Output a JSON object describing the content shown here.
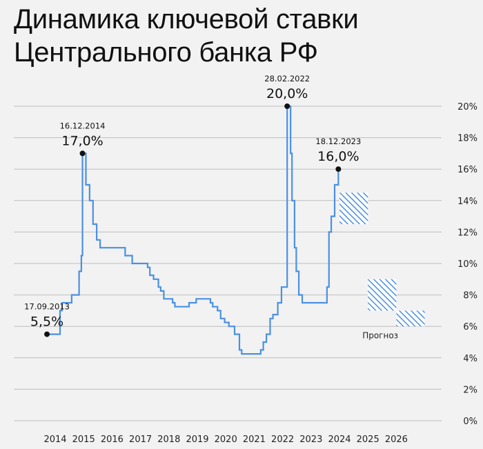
{
  "chart_data": {
    "type": "line",
    "title_lines": [
      "Динамика ключевой ставки",
      "Центрального банка РФ"
    ],
    "step": true,
    "color": "#4a90e2",
    "ylim": [
      0,
      20
    ],
    "y_ticks": [
      0,
      2,
      4,
      6,
      8,
      10,
      12,
      14,
      16,
      18,
      20
    ],
    "y_tick_labels": [
      "0%",
      "2%",
      "4%",
      "6%",
      "8%",
      "10%",
      "12%",
      "14%",
      "16%",
      "18%",
      "20%"
    ],
    "y_axis_side": "right",
    "grid": "horizontal",
    "x_ticks": [
      2014,
      2015,
      2016,
      2017,
      2018,
      2019,
      2020,
      2021,
      2022,
      2023,
      2024,
      2025,
      2026
    ],
    "series": [
      {
        "x": [
          2013.71,
          2014.17,
          2014.24,
          2014.42,
          2014.58,
          2014.84,
          2014.92,
          2014.96,
          2015.08,
          2015.21,
          2015.33,
          2015.46,
          2015.58,
          2015.69,
          2016.46,
          2016.71,
          2017.25,
          2017.33,
          2017.46,
          2017.63,
          2017.71,
          2017.82,
          2017.96,
          2018.13,
          2018.21,
          2018.71,
          2018.96,
          2019.46,
          2019.54,
          2019.71,
          2019.82,
          2019.96,
          2020.11,
          2020.31,
          2020.48,
          2020.56,
          2021.23,
          2021.32,
          2021.43,
          2021.56,
          2021.66,
          2021.83,
          2021.96,
          2022.16,
          2022.28,
          2022.33,
          2022.42,
          2022.48,
          2022.57,
          2022.69,
          2023.56,
          2023.63,
          2023.71,
          2023.83,
          2023.96
        ],
        "y": [
          5.5,
          7.0,
          7.5,
          7.5,
          8.0,
          9.5,
          10.5,
          17.0,
          15.0,
          14.0,
          12.5,
          11.5,
          11.0,
          11.0,
          10.5,
          10.0,
          9.75,
          9.25,
          9.0,
          8.5,
          8.25,
          7.75,
          7.75,
          7.5,
          7.25,
          7.5,
          7.75,
          7.5,
          7.25,
          7.0,
          6.5,
          6.25,
          6.0,
          5.5,
          4.5,
          4.25,
          4.5,
          5.0,
          5.5,
          6.5,
          6.75,
          7.5,
          8.5,
          20.0,
          17.0,
          14.0,
          11.0,
          9.5,
          8.0,
          7.5,
          8.5,
          12.0,
          13.0,
          15.0,
          16.0
        ]
      }
    ],
    "annotations": [
      {
        "date": "17.09.2013",
        "value": "5,5%",
        "x": 2013.71,
        "y": 5.5
      },
      {
        "date": "16.12.2014",
        "value": "17,0%",
        "x": 2014.96,
        "y": 17.0
      },
      {
        "date": "28.02.2022",
        "value": "20,0%",
        "x": 2022.16,
        "y": 20.0
      },
      {
        "date": "18.12.2023",
        "value": "16,0%",
        "x": 2023.96,
        "y": 16.0
      }
    ],
    "forecast": {
      "label": "Прогноз",
      "ranges": [
        {
          "x": [
            2024,
            2025
          ],
          "y": [
            12.5,
            14.5
          ]
        },
        {
          "x": [
            2025,
            2026
          ],
          "y": [
            7.0,
            9.0
          ]
        },
        {
          "x": [
            2026,
            2027
          ],
          "y": [
            6.0,
            7.0
          ]
        }
      ]
    }
  }
}
